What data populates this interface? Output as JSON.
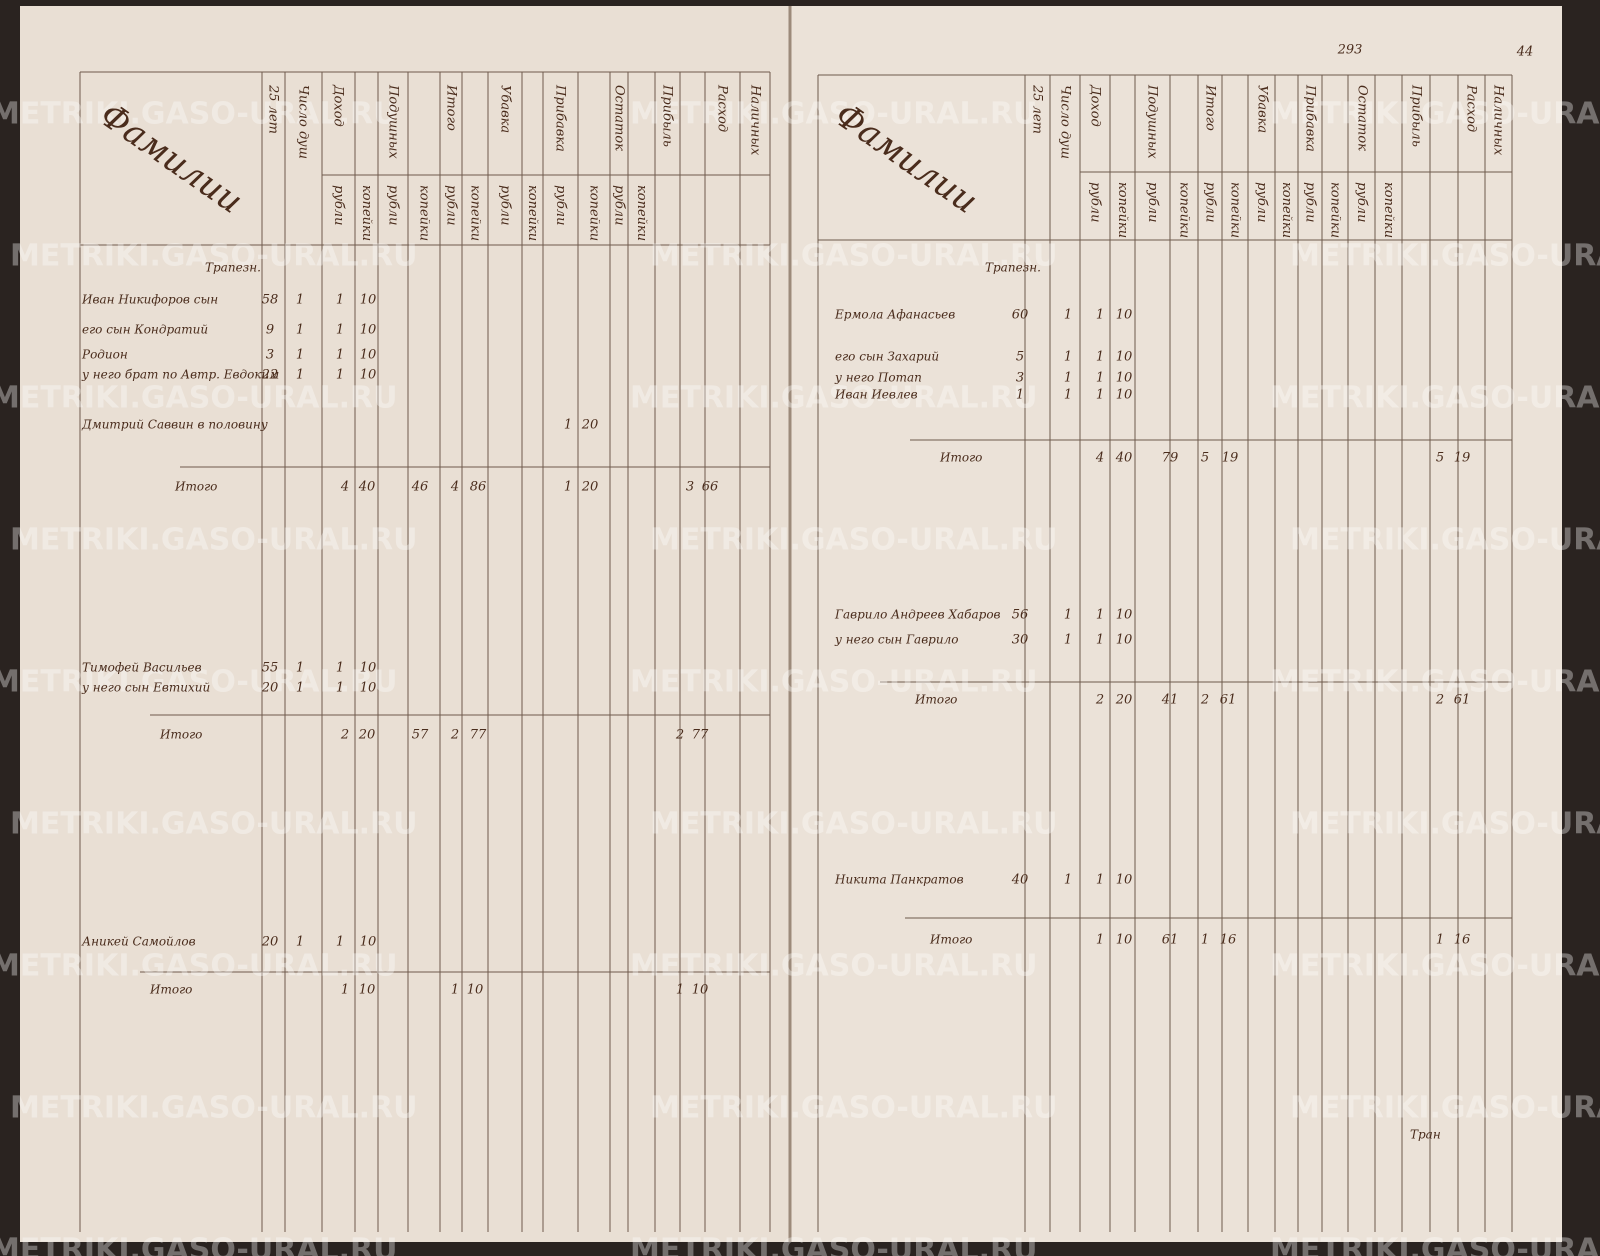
{
  "watermark": "METRIKI.GASO-URAL.RU",
  "left_page": {
    "heading": "Фамилии",
    "column_headers": [
      "25 лет",
      "Число душ",
      "Доход",
      "Подушных",
      "Итого",
      "Убавка",
      "Прибавка",
      "Остаток",
      "Прибыль",
      "Расход",
      "Наличных"
    ],
    "subheaders": [
      "рубли",
      "копейки",
      "рубли",
      "копейки",
      "рубли",
      "копейки",
      "рубли",
      "копейки",
      "рубли",
      "копейки",
      "рубли",
      "копейки"
    ],
    "group_label": "Трапезн.",
    "entries": [
      {
        "name": "Иван Никифоров сын",
        "cells": [
          "58",
          "1",
          "1",
          "10"
        ]
      },
      {
        "name": "его сын Кондратий",
        "cells": [
          "9",
          "1",
          "1",
          "10"
        ]
      },
      {
        "name": "Родион",
        "cells": [
          "3",
          "1",
          "1",
          "10"
        ]
      },
      {
        "name": "у него брат по Автр. Евдоким",
        "cells": [
          "22",
          "1",
          "1",
          "10"
        ]
      },
      {
        "name": "Дмитрий Саввин в половину",
        "cells": [
          "1",
          "20"
        ]
      },
      {
        "name": "Тимофей Васильев",
        "cells": [
          "55",
          "1",
          "1",
          "10"
        ]
      },
      {
        "name": "у него сын Евтихий",
        "cells": [
          "20",
          "1",
          "1",
          "10"
        ]
      },
      {
        "name": "Аникей Самойлов",
        "cells": [
          "20",
          "1",
          "1",
          "10"
        ]
      }
    ],
    "totals": [
      {
        "label": "Итого",
        "cells": [
          "4",
          "40",
          "46",
          "4",
          "86",
          "1",
          "20",
          "3",
          "66"
        ]
      },
      {
        "label": "Итого",
        "cells": [
          "2",
          "20",
          "57",
          "2",
          "77",
          "2",
          "77"
        ]
      },
      {
        "label": "Итого",
        "cells": [
          "1",
          "10",
          "1",
          "10",
          "1",
          "10"
        ]
      }
    ]
  },
  "right_page": {
    "page_numbers": [
      "293",
      "44"
    ],
    "heading": "Фамилии",
    "group_label": "Трапезн.",
    "entries": [
      {
        "name": "Ермола Афанасьев",
        "cells": [
          "60",
          "1",
          "1",
          "10"
        ]
      },
      {
        "name": "его сын Захарий",
        "cells": [
          "5",
          "1",
          "1",
          "10"
        ]
      },
      {
        "name": "у него Потап",
        "cells": [
          "3",
          "1",
          "1",
          "10"
        ]
      },
      {
        "name": "Иван Иевлев",
        "cells": [
          "1",
          "1",
          "1",
          "10"
        ]
      },
      {
        "name": "Гаврило Андреев Хабаров",
        "cells": [
          "56",
          "1",
          "1",
          "10"
        ]
      },
      {
        "name": "у него сын Гаврило",
        "cells": [
          "30",
          "1",
          "1",
          "10"
        ]
      },
      {
        "name": "Никита Панкратов",
        "cells": [
          "40",
          "1",
          "1",
          "10"
        ]
      }
    ],
    "totals": [
      {
        "label": "Итого",
        "cells": [
          "4",
          "40",
          "79",
          "5",
          "19",
          "5",
          "19"
        ]
      },
      {
        "label": "Итого",
        "cells": [
          "2",
          "20",
          "41",
          "2",
          "61",
          "2",
          "61"
        ]
      },
      {
        "label": "Итого",
        "cells": [
          "1",
          "10",
          "61",
          "1",
          "16",
          "1",
          "16"
        ]
      }
    ],
    "signature": "Тран"
  }
}
